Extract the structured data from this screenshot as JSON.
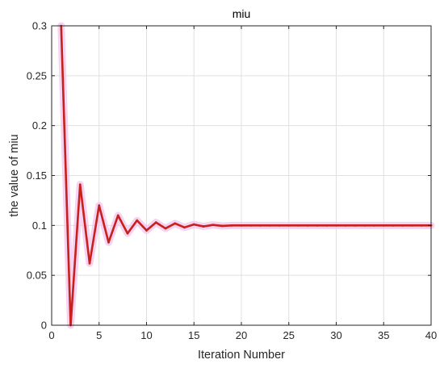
{
  "chart_data": {
    "type": "line",
    "title": "miu",
    "xlabel": "Iteration Number",
    "ylabel": "the value of miu",
    "xlim": [
      0,
      40
    ],
    "ylim": [
      0,
      0.3
    ],
    "xticks": [
      0,
      5,
      10,
      15,
      20,
      25,
      30,
      35,
      40
    ],
    "xtick_labels": [
      "0",
      "5",
      "10",
      "15",
      "20",
      "25",
      "30",
      "35",
      "40"
    ],
    "yticks": [
      0,
      0.05,
      0.1,
      0.15,
      0.2,
      0.25,
      0.3
    ],
    "ytick_labels": [
      "0",
      "0.05",
      "0.1",
      "0.15",
      "0.2",
      "0.25",
      "0.3"
    ],
    "grid": true,
    "legend": "none",
    "colors": {
      "line": "#c8201c",
      "band": "#f2c4ec",
      "grid": "#e0e0e0",
      "axes": "#262626"
    },
    "series": [
      {
        "x": [
          1,
          2,
          3,
          4,
          5,
          6,
          7,
          8,
          9,
          10,
          11,
          12,
          13,
          14,
          15,
          16,
          17,
          18,
          19,
          20,
          21,
          22,
          23,
          24,
          25,
          26,
          27,
          28,
          29,
          30,
          31,
          32,
          33,
          34,
          35,
          36,
          37,
          38,
          39,
          40
        ],
        "values": [
          0.3,
          0.0,
          0.141,
          0.062,
          0.12,
          0.083,
          0.11,
          0.092,
          0.105,
          0.095,
          0.103,
          0.097,
          0.102,
          0.098,
          0.101,
          0.099,
          0.1005,
          0.0995,
          0.1,
          0.1,
          0.1,
          0.1,
          0.1,
          0.1,
          0.1,
          0.1,
          0.1,
          0.1,
          0.1,
          0.1,
          0.1,
          0.1,
          0.1,
          0.1,
          0.1,
          0.1,
          0.1,
          0.1,
          0.1,
          0.1
        ]
      }
    ]
  }
}
